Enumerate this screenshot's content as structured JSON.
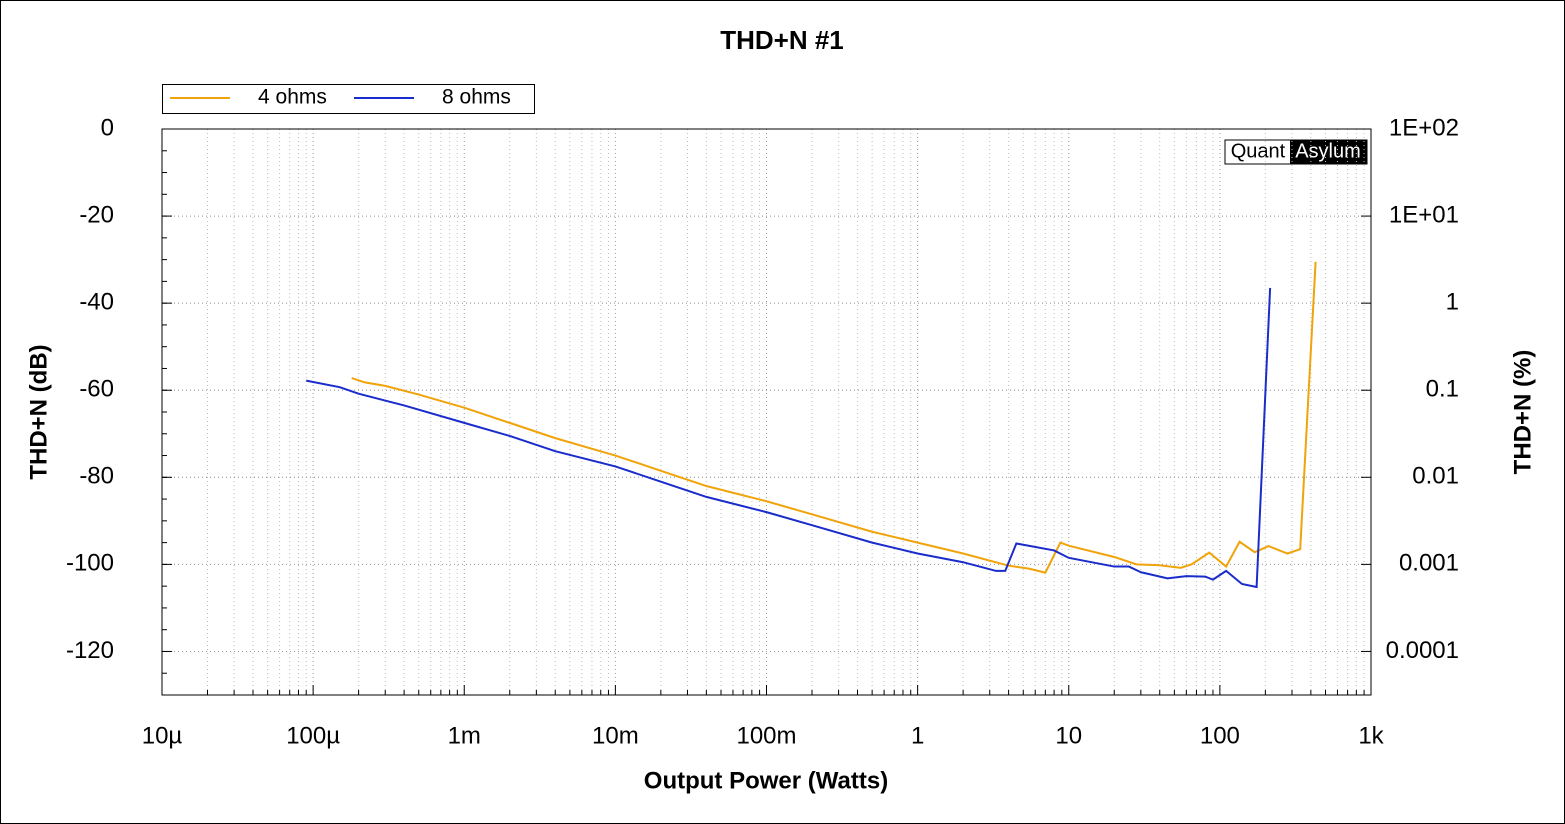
{
  "chart_data": {
    "type": "line",
    "title": "THD+N #1",
    "xlabel": "Output Power (Watts)",
    "ylabel": "THD+N (dB)",
    "y2label": "THD+N (%)",
    "xscale": "log",
    "y2scale": "log",
    "grid": true,
    "legend": "top-left",
    "xlim": [
      1e-05,
      1000
    ],
    "xticks": [
      {
        "value": 1e-05,
        "label": "10µ"
      },
      {
        "value": 0.0001,
        "label": "100µ"
      },
      {
        "value": 0.001,
        "label": "1m"
      },
      {
        "value": 0.01,
        "label": "10m"
      },
      {
        "value": 0.1,
        "label": "100m"
      },
      1,
      10,
      100,
      {
        "value": 1000,
        "label": "1k"
      }
    ],
    "ylim": [
      -130,
      0
    ],
    "yticks": [
      0,
      -20,
      -40,
      -60,
      -80,
      -100,
      -120
    ],
    "y2lim": [
      3.16e-05,
      100
    ],
    "y2ticks": [
      {
        "value": 100,
        "label": "1E+02"
      },
      {
        "value": 10,
        "label": "1E+01"
      },
      1,
      0.1,
      0.01,
      0.001,
      0.0001
    ],
    "series": [
      {
        "name": "4 ohms",
        "color": "#f0a30a",
        "x": [
          0.00018,
          0.00022,
          0.0003,
          0.0005,
          0.001,
          0.002,
          0.004,
          0.01,
          0.02,
          0.04,
          0.1,
          0.2,
          0.5,
          1,
          2,
          4,
          5.5,
          7,
          8.8,
          10,
          20,
          28,
          40,
          55,
          65,
          85,
          110,
          135,
          170,
          210,
          280,
          340,
          430
        ],
        "values": [
          -57.2,
          -58.2,
          -59,
          -61,
          -64,
          -67.5,
          -71,
          -75,
          -78.5,
          -82,
          -85.5,
          -88.5,
          -92.5,
          -95,
          -97.5,
          -100.3,
          -101,
          -101.9,
          -95,
          -95.7,
          -98.3,
          -100,
          -100.2,
          -100.8,
          -100,
          -97.3,
          -100.5,
          -94.8,
          -97.2,
          -95.8,
          -97.5,
          -96.5,
          -30.5
        ]
      },
      {
        "name": "8 ohms",
        "color": "#1a2ccc",
        "x": [
          9e-05,
          0.00015,
          0.0002,
          0.0004,
          0.001,
          0.002,
          0.004,
          0.01,
          0.02,
          0.04,
          0.1,
          0.2,
          0.5,
          1,
          2,
          3.3,
          3.8,
          4.5,
          8,
          10,
          20,
          25,
          30,
          45,
          60,
          80,
          90,
          110,
          140,
          175,
          215
        ],
        "values": [
          -57.8,
          -59.3,
          -60.8,
          -63.5,
          -67.5,
          -70.5,
          -74,
          -77.5,
          -81,
          -84.5,
          -88,
          -91,
          -95,
          -97.5,
          -99.5,
          -101.5,
          -101.5,
          -95.2,
          -96.8,
          -98.5,
          -100.5,
          -100.5,
          -101.8,
          -103.2,
          -102.7,
          -102.8,
          -103.5,
          -101.5,
          -104.5,
          -105.2,
          -36.5
        ]
      }
    ]
  },
  "watermark": [
    "Quant",
    "Asylum"
  ]
}
